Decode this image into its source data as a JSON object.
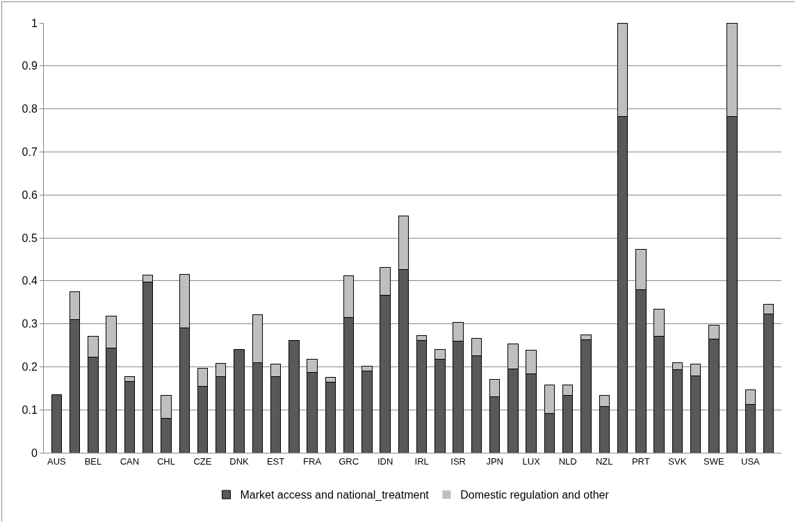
{
  "chart_data": {
    "type": "bar",
    "stacked": true,
    "categories": [
      "AUS",
      null,
      "BEL",
      null,
      "CAN",
      null,
      "CHL",
      null,
      "CZE",
      null,
      "DNK",
      null,
      "EST",
      null,
      "FRA",
      null,
      "GRC",
      null,
      "IDN",
      null,
      "IRL",
      null,
      "ISR",
      null,
      "JPN",
      null,
      "LUX",
      null,
      "NLD",
      null,
      "NZL",
      null,
      "PRT",
      null,
      "SVK",
      null,
      "SWE",
      null,
      "USA",
      null
    ],
    "series": [
      {
        "name": "Market access and national_treatment",
        "color": "#595959",
        "values": [
          0.135,
          0.31,
          0.222,
          0.244,
          0.166,
          0.397,
          0.08,
          0.291,
          0.155,
          0.178,
          0.24,
          0.21,
          0.178,
          0.261,
          0.187,
          0.164,
          0.314,
          0.19,
          0.367,
          0.426,
          0.262,
          0.218,
          0.259,
          0.225,
          0.131,
          0.195,
          0.183,
          0.092,
          0.133,
          0.263,
          0.107,
          0.783,
          0.38,
          0.271,
          0.194,
          0.179,
          0.264,
          0.783,
          0.113,
          0.323
        ]
      },
      {
        "name": "Domestic regulation and other",
        "color": "#bfbfbf",
        "values": [
          0,
          0.065,
          0.049,
          0.074,
          0.011,
          0.016,
          0.054,
          0.124,
          0.042,
          0.03,
          0,
          0.112,
          0.028,
          0,
          0.03,
          0.011,
          0.098,
          0.011,
          0.065,
          0.125,
          0.011,
          0.023,
          0.045,
          0.041,
          0.04,
          0.058,
          0.055,
          0.065,
          0.024,
          0.012,
          0.026,
          0.217,
          0.093,
          0.063,
          0.016,
          0.028,
          0.033,
          0.217,
          0.034,
          0.023
        ]
      }
    ],
    "ylim": [
      0,
      1
    ],
    "yticks": [
      0,
      0.1,
      0.2,
      0.3,
      0.4,
      0.5,
      0.6,
      0.7,
      0.8,
      0.9,
      1
    ],
    "grid": "y",
    "legend": "bottom"
  }
}
